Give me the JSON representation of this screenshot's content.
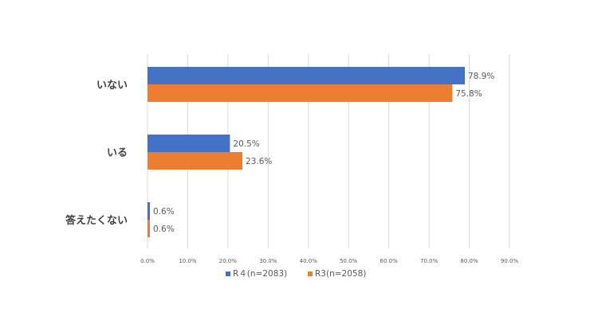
{
  "chart_data": {
    "type": "bar",
    "orientation": "horizontal",
    "categories": [
      "いない",
      "いる",
      "答えたくない"
    ],
    "series": [
      {
        "name": "R４(n=2083)",
        "values": [
          78.9,
          20.5,
          0.6
        ],
        "color": "#4472C4"
      },
      {
        "name": "R3(n=2058)",
        "values": [
          75.8,
          23.6,
          0.6
        ],
        "color": "#ED7D31"
      }
    ],
    "value_labels": [
      [
        "78.9%",
        "20.5%",
        "0.6%"
      ],
      [
        "75.8%",
        "23.6%",
        "0.6%"
      ]
    ],
    "xlim": [
      0,
      90
    ],
    "xticks": [
      "0.0%",
      "10.0%",
      "20.0%",
      "30.0%",
      "40.0%",
      "50.0%",
      "60.0%",
      "70.0%",
      "80.0%",
      "90.0%"
    ],
    "grid": true,
    "legend_position": "bottom"
  }
}
